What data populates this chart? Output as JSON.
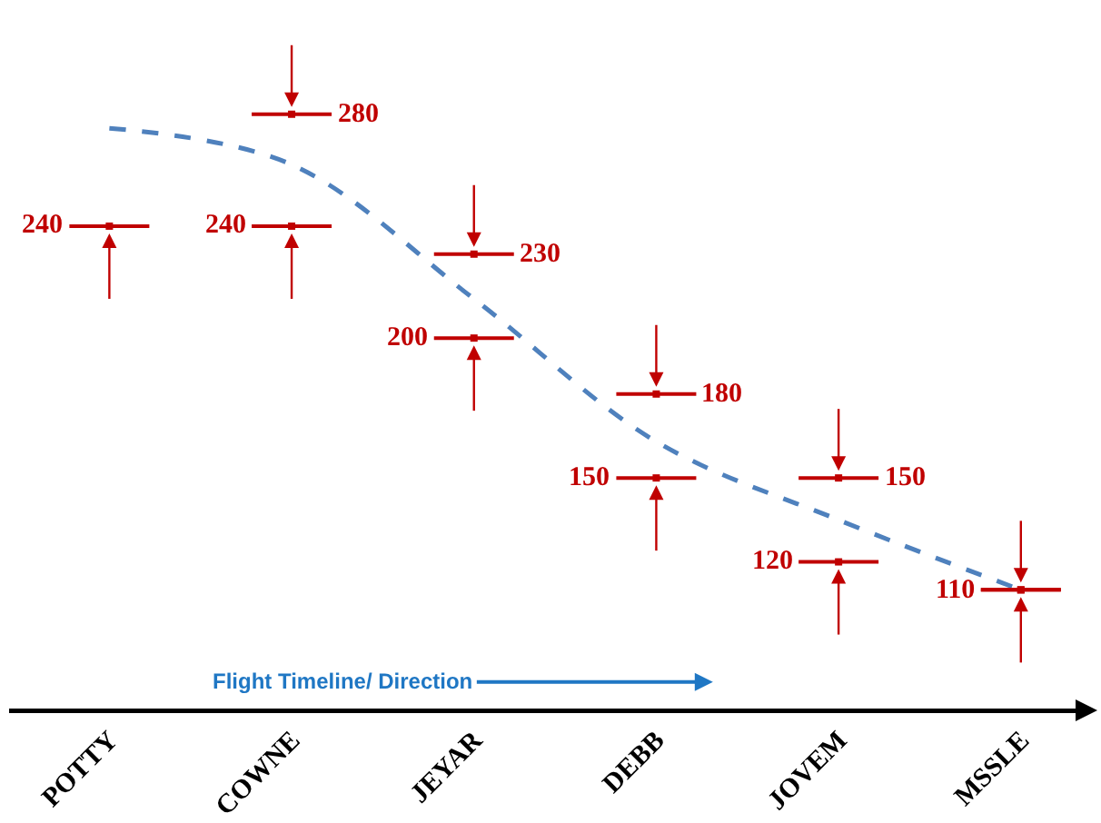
{
  "chart_data": {
    "type": "line",
    "categories": [
      "POTTY",
      "COWNE",
      "JEYAR",
      "DEBB",
      "JOVEM",
      "MSSLE"
    ],
    "tick_labels": "x",
    "grid": false,
    "line_style": "dashed",
    "annotations": [
      "Flight Timeline/ Direction"
    ],
    "series": [
      {
        "color": "#4f81bd",
        "values": [
          275,
          262,
          214,
          163,
          135,
          110
        ]
      },
      {
        "type": "scatter",
        "color": "#c00000",
        "values": [
          240,
          240,
          200,
          150,
          120,
          110
        ],
        "value_labels": [
          "240",
          "240",
          "200",
          "150",
          "120",
          "110"
        ]
      },
      {
        "type": "scatter",
        "color": "#c00000",
        "values": [
          null,
          280,
          230,
          180,
          150,
          110
        ],
        "value_labels": [
          null,
          "280",
          "230",
          "180",
          "150",
          null
        ]
      }
    ]
  }
}
